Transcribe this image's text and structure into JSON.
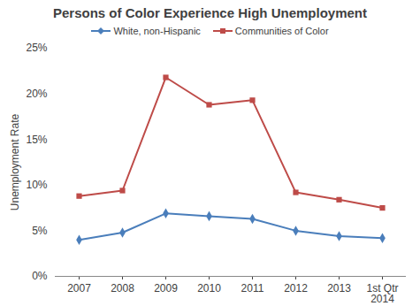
{
  "chart_data": {
    "type": "line",
    "title": "Persons of Color Experience High Unemployment",
    "y_label": "Unemployment Rate",
    "categories": [
      "2007",
      "2008",
      "2009",
      "2010",
      "2011",
      "2012",
      "2013",
      "1st Qtr 2014"
    ],
    "series": [
      {
        "name": "White, non-Hispanic",
        "color": "#4a7ebb",
        "marker": "diamond",
        "values": [
          4.0,
          4.8,
          6.9,
          6.6,
          6.3,
          5.0,
          4.4,
          4.2
        ]
      },
      {
        "name": "Communities of Color",
        "color": "#be4b48",
        "marker": "square",
        "values": [
          8.8,
          9.4,
          21.8,
          18.8,
          19.3,
          9.2,
          8.4,
          7.5
        ]
      }
    ],
    "ylim": [
      0,
      25
    ],
    "yticks": [
      {
        "value": 0,
        "label": "0%"
      },
      {
        "value": 5,
        "label": "5%"
      },
      {
        "value": 10,
        "label": "10%"
      },
      {
        "value": 15,
        "label": "15%"
      },
      {
        "value": 20,
        "label": "20%"
      },
      {
        "value": 25,
        "label": "25%"
      }
    ],
    "grid": false,
    "legend": "top"
  }
}
